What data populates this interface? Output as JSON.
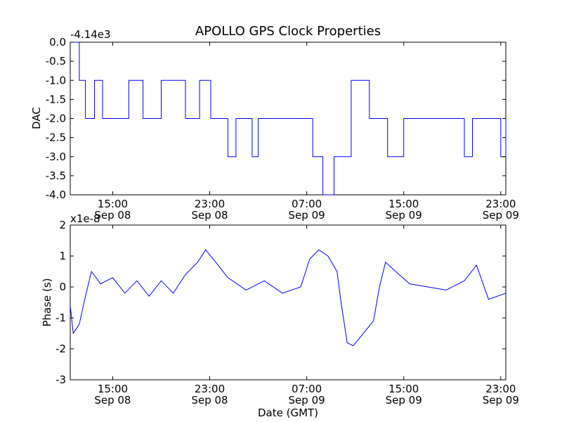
{
  "chart_data": [
    {
      "type": "line",
      "title": "APOLLO GPS Clock Properties",
      "xlabel": "",
      "ylabel": "DAC",
      "offset_label": "-4.14e3",
      "color": "#0000ff",
      "x_ticks": [
        {
          "time": "2010-09-08T15:00",
          "line1": "15:00",
          "line2": "Sep 08"
        },
        {
          "time": "2010-09-08T23:00",
          "line1": "23:00",
          "line2": "Sep 08"
        },
        {
          "time": "2010-09-09T07:00",
          "line1": "07:00",
          "line2": "Sep 09"
        },
        {
          "time": "2010-09-09T15:00",
          "line1": "15:00",
          "line2": "Sep 09"
        },
        {
          "time": "2010-09-09T23:00",
          "line1": "23:00",
          "line2": "Sep 09"
        }
      ],
      "xlim": [
        "2010-09-08T11:30",
        "2010-09-09T23:25"
      ],
      "ylim": [
        -4.0,
        0.0
      ],
      "y_ticks": [
        "0.0",
        "-0.5",
        "-1.0",
        "-1.5",
        "-2.0",
        "-2.5",
        "-3.0",
        "-3.5",
        "-4.0"
      ],
      "y_tick_values": [
        0.0,
        -0.5,
        -1.0,
        -1.5,
        -2.0,
        -2.5,
        -3.0,
        -3.5,
        -4.0
      ],
      "series": [
        {
          "points": [
            [
              "2010-09-08T11:30",
              0
            ],
            [
              "2010-09-08T12:15",
              -1
            ],
            [
              "2010-09-08T12:45",
              -2
            ],
            [
              "2010-09-08T13:30",
              -1
            ],
            [
              "2010-09-08T14:10",
              -2
            ],
            [
              "2010-09-08T16:20",
              -1
            ],
            [
              "2010-09-08T17:30",
              -2
            ],
            [
              "2010-09-08T19:00",
              -1
            ],
            [
              "2010-09-08T21:00",
              -2
            ],
            [
              "2010-09-08T22:10",
              -1
            ],
            [
              "2010-09-08T23:05",
              -2
            ],
            [
              "2010-09-09T00:30",
              -3
            ],
            [
              "2010-09-09T01:10",
              -2
            ],
            [
              "2010-09-09T02:30",
              -3
            ],
            [
              "2010-09-09T03:00",
              -2
            ],
            [
              "2010-09-09T07:30",
              -3
            ],
            [
              "2010-09-09T08:20",
              -4
            ],
            [
              "2010-09-09T09:15",
              -3
            ],
            [
              "2010-09-09T10:40",
              -1
            ],
            [
              "2010-09-09T12:10",
              -2
            ],
            [
              "2010-09-09T13:40",
              -3
            ],
            [
              "2010-09-09T15:00",
              -2
            ],
            [
              "2010-09-09T20:00",
              -3
            ],
            [
              "2010-09-09T20:40",
              -2
            ],
            [
              "2010-09-09T23:00",
              -3
            ],
            [
              "2010-09-09T23:25",
              -2
            ]
          ]
        }
      ]
    },
    {
      "type": "line",
      "title": "",
      "xlabel": "Date (GMT)",
      "ylabel": "Phase (s)",
      "offset_label": "x1e-8",
      "color": "#0000ff",
      "x_ticks": [
        {
          "time": "2010-09-08T15:00",
          "line1": "15:00",
          "line2": "Sep 08"
        },
        {
          "time": "2010-09-08T23:00",
          "line1": "23:00",
          "line2": "Sep 08"
        },
        {
          "time": "2010-09-09T07:00",
          "line1": "07:00",
          "line2": "Sep 09"
        },
        {
          "time": "2010-09-09T15:00",
          "line1": "15:00",
          "line2": "Sep 09"
        },
        {
          "time": "2010-09-09T23:00",
          "line1": "23:00",
          "line2": "Sep 09"
        }
      ],
      "xlim": [
        "2010-09-08T11:30",
        "2010-09-09T23:25"
      ],
      "ylim": [
        -3,
        2
      ],
      "y_ticks": [
        "2",
        "1",
        "0",
        "-1",
        "-2",
        "-3"
      ],
      "y_tick_values": [
        2,
        1,
        0,
        -1,
        -2,
        -3
      ],
      "series": [
        {
          "points": [
            [
              "2010-09-08T11:30",
              -0.6
            ],
            [
              "2010-09-08T11:45",
              -1.5
            ],
            [
              "2010-09-08T12:15",
              -1.2
            ],
            [
              "2010-09-08T12:45",
              -0.3
            ],
            [
              "2010-09-08T13:15",
              0.5
            ],
            [
              "2010-09-08T14:00",
              0.1
            ],
            [
              "2010-09-08T15:00",
              0.3
            ],
            [
              "2010-09-08T16:00",
              -0.2
            ],
            [
              "2010-09-08T17:00",
              0.2
            ],
            [
              "2010-09-08T18:00",
              -0.3
            ],
            [
              "2010-09-08T19:00",
              0.2
            ],
            [
              "2010-09-08T20:00",
              -0.2
            ],
            [
              "2010-09-08T21:00",
              0.4
            ],
            [
              "2010-09-08T22:00",
              0.8
            ],
            [
              "2010-09-08T22:40",
              1.2
            ],
            [
              "2010-09-08T23:30",
              0.8
            ],
            [
              "2010-09-09T00:30",
              0.3
            ],
            [
              "2010-09-09T02:00",
              -0.1
            ],
            [
              "2010-09-09T03:30",
              0.2
            ],
            [
              "2010-09-09T05:00",
              -0.2
            ],
            [
              "2010-09-09T06:30",
              0.0
            ],
            [
              "2010-09-09T07:15",
              0.9
            ],
            [
              "2010-09-09T08:00",
              1.2
            ],
            [
              "2010-09-09T08:45",
              1.0
            ],
            [
              "2010-09-09T09:30",
              0.5
            ],
            [
              "2010-09-09T09:50",
              -0.5
            ],
            [
              "2010-09-09T10:20",
              -1.8
            ],
            [
              "2010-09-09T10:50",
              -1.9
            ],
            [
              "2010-09-09T11:40",
              -1.5
            ],
            [
              "2010-09-09T12:30",
              -1.1
            ],
            [
              "2010-09-09T13:00",
              0.0
            ],
            [
              "2010-09-09T13:30",
              0.8
            ],
            [
              "2010-09-09T14:20",
              0.5
            ],
            [
              "2010-09-09T15:30",
              0.1
            ],
            [
              "2010-09-09T17:00",
              0.0
            ],
            [
              "2010-09-09T18:30",
              -0.1
            ],
            [
              "2010-09-09T20:00",
              0.2
            ],
            [
              "2010-09-09T21:00",
              0.7
            ],
            [
              "2010-09-09T22:00",
              -0.4
            ],
            [
              "2010-09-09T23:25",
              -0.2
            ]
          ]
        }
      ]
    }
  ]
}
